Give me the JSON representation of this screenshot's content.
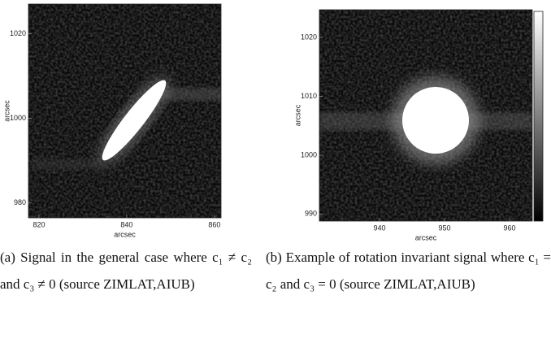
{
  "chart_data": [
    {
      "type": "image",
      "xlabel": "arcsec",
      "ylabel": "arcsec",
      "xlim": [
        817.6,
        861.5
      ],
      "ylim": [
        976.5,
        1027
      ],
      "xticks": [
        820,
        840,
        860
      ],
      "yticks": [
        980,
        1000,
        1020
      ]
    },
    {
      "type": "image",
      "xlabel": "arcsec",
      "ylabel": "arcsec",
      "xlim": [
        930.75,
        963.5
      ],
      "ylim": [
        988.8,
        1024.7
      ],
      "xticks": [
        940,
        950,
        960
      ],
      "yticks": [
        990,
        1000,
        1010,
        1020
      ]
    }
  ],
  "captions": [
    "(a) Signal in the general case where c₁ ≠ c₂ and c₃ ≠ 0 (source ZIMLAT,AIUB)",
    "(b) Example of rotation invariant signal where c₁ = c₂ and c₃ = 0 (source ZIMLAT,AIUB)"
  ]
}
